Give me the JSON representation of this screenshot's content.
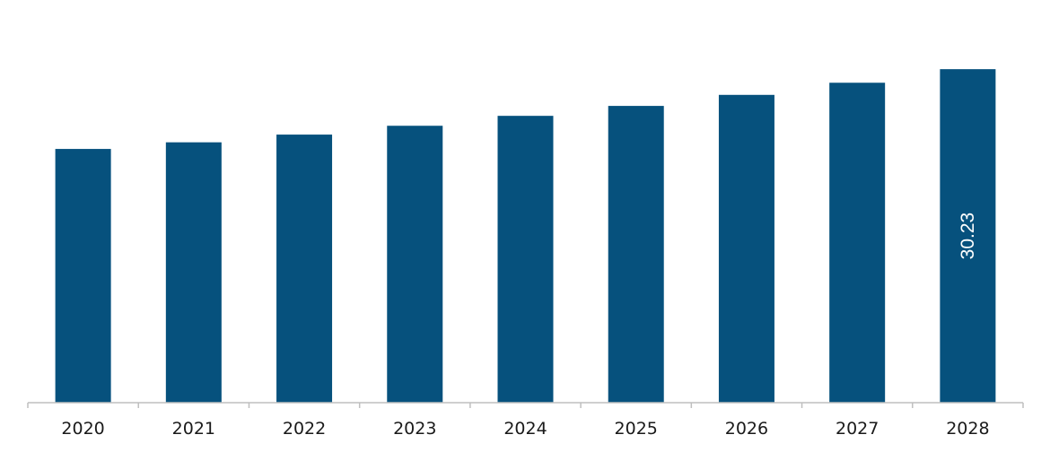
{
  "chart_data": {
    "type": "bar",
    "categories": [
      "2020",
      "2021",
      "2022",
      "2023",
      "2024",
      "2025",
      "2026",
      "2027",
      "2028"
    ],
    "values": [
      23.0,
      23.6,
      24.3,
      25.1,
      26.0,
      26.9,
      27.9,
      29.0,
      30.23
    ],
    "data_labels": [
      "",
      "",
      "",
      "",
      "",
      "",
      "",
      "",
      "30.23"
    ],
    "title": "",
    "xlabel": "",
    "ylabel": "",
    "ylim": [
      0,
      36.5
    ],
    "grid": false,
    "legend": "none",
    "bar_color": "#06517D",
    "data_label_color": "#FFFFFF",
    "axis_color": "#BFBFBF"
  }
}
